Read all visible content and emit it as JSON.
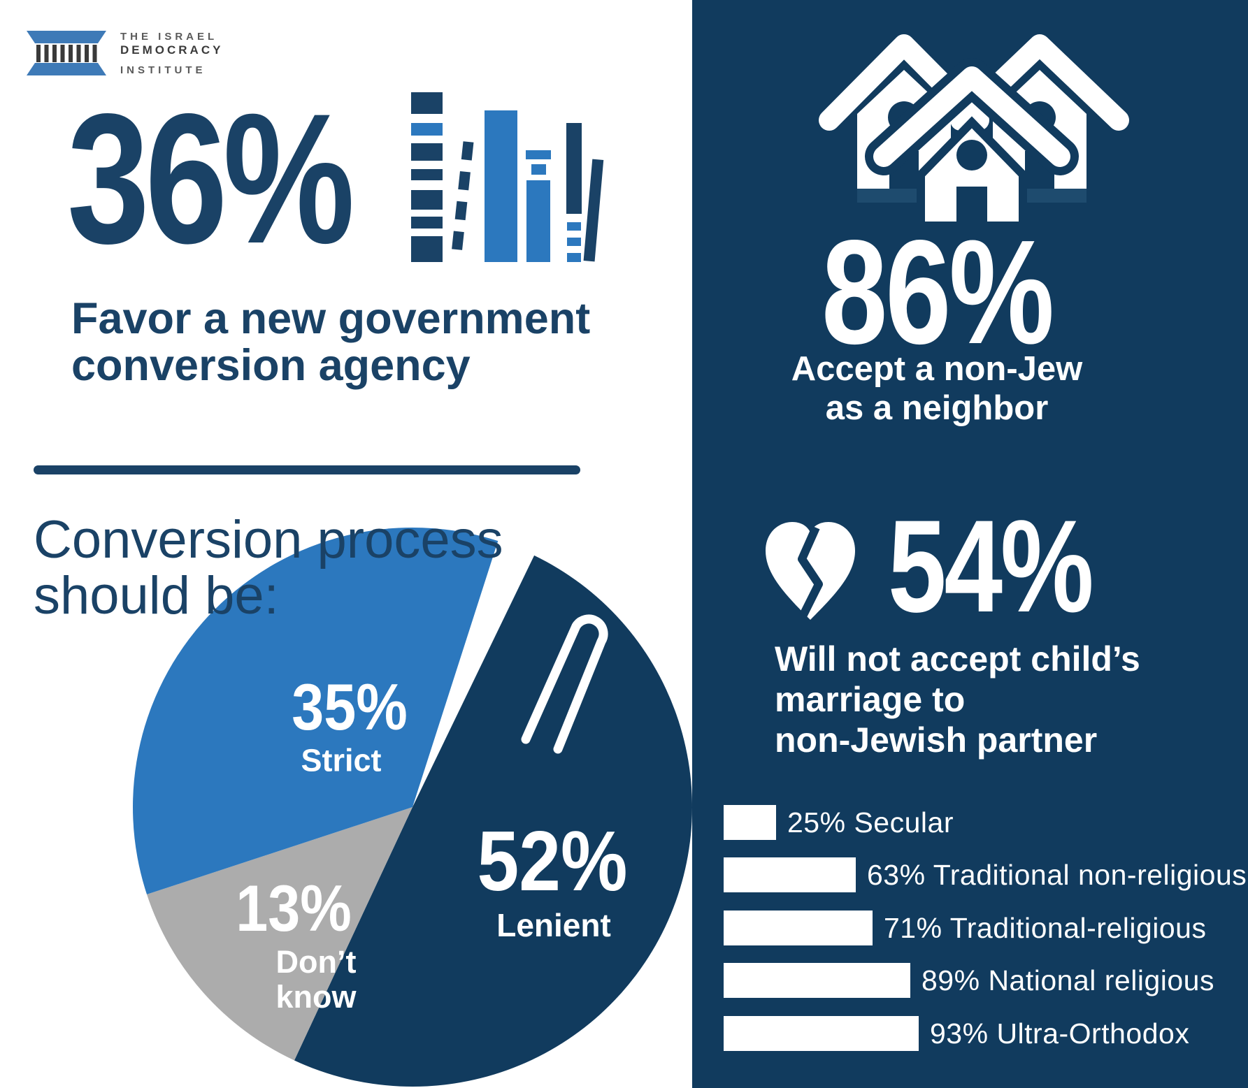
{
  "logo": {
    "line1": "THE ISRAEL",
    "line2": "DEMOCRACY",
    "line3": "INSTITUTE"
  },
  "left": {
    "stat_value": "36%",
    "stat_caption_line1": "Favor a new government",
    "stat_caption_line2": "conversion agency",
    "heading_line1": "Conversion process",
    "heading_line2": "should be:"
  },
  "panel": {
    "neighbor_value": "86%",
    "neighbor_caption_line1": "Accept a non-Jew",
    "neighbor_caption_line2": "as a neighbor",
    "marriage_value": "54%",
    "marriage_caption_line1": "Will not accept child’s",
    "marriage_caption_line2": "marriage to",
    "marriage_caption_line3": "non-Jewish partner"
  },
  "chart_data": [
    {
      "type": "pie",
      "title": "Conversion process should be:",
      "slices": [
        {
          "label": "Lenient",
          "value": 52,
          "pct_label": "52%",
          "color": "#113b5e"
        },
        {
          "label": "Don’t know",
          "value": 13,
          "pct_label": "13%",
          "color": "#acacac"
        },
        {
          "label": "Strict",
          "value": 35,
          "pct_label": "35%",
          "color": "#2c78be"
        }
      ],
      "rotation_deg": -72.2,
      "gap_deg": 8,
      "legend_position": "inside"
    },
    {
      "type": "bar",
      "title": "Will not accept child’s marriage to non-Jewish partner",
      "categories": [
        "Secular",
        "Traditional non-religious",
        "Traditional-religious",
        "National religious",
        "Ultra-Orthodox"
      ],
      "values": [
        25,
        63,
        71,
        89,
        93
      ],
      "items": [
        {
          "label": "25% Secular",
          "value": 25
        },
        {
          "label": "63% Traditional non-religious",
          "value": 63
        },
        {
          "label": "71% Traditional-religious",
          "value": 71
        },
        {
          "label": "89% National religious",
          "value": 89
        },
        {
          "label": "93% Ultra-Orthodox",
          "value": 93
        }
      ],
      "bar_color": "#ffffff",
      "xlim": [
        0,
        100
      ]
    }
  ],
  "icons": {
    "logo_icon": "pillar-icon",
    "books": "books-icon",
    "tongs": "tongs-icon",
    "houses": "houses-icon",
    "heart": "broken-heart-icon"
  },
  "colors": {
    "navy_panel": "#113b5e",
    "navy_text": "#1a4266",
    "accent_blue": "#2c78be",
    "logo_blue": "#3e7ab7",
    "gray_slice": "#acacac",
    "white": "#ffffff"
  }
}
